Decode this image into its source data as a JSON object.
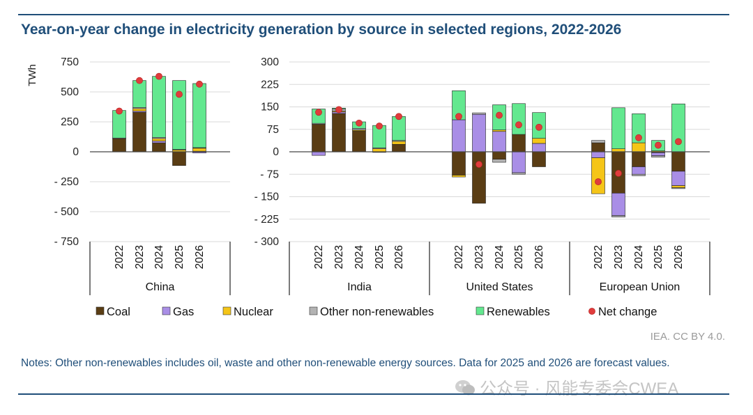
{
  "title": "Year-on-year change in electricity generation by source in selected regions, 2022-2026",
  "credit": "IEA. CC BY 4.0.",
  "notes": "Notes: Other non-renewables includes oil, waste and other non-renewable energy sources. Data for 2025 and 2026 are forecast values.",
  "watermark": "公众号 · 风能专委会CWEA",
  "colors": {
    "coal": "#5a3d14",
    "gas": "#a98ee6",
    "nuclear": "#f5c518",
    "other": "#b3b3b3",
    "renewables": "#63e88f",
    "net": "#e03c3c",
    "title": "#1f4e79"
  },
  "chart_data": [
    {
      "type": "bar",
      "stacked": true,
      "ylabel": "TWh",
      "ylim": [
        -750,
        750
      ],
      "yticks": [
        "750",
        "500",
        "250",
        "0",
        "- 250",
        "- 500",
        "- 750"
      ],
      "yticks_values": [
        750,
        500,
        250,
        0,
        -250,
        -500,
        -750
      ],
      "groups": [
        {
          "name": "China",
          "categories": [
            "2022",
            "2023",
            "2024",
            "2025",
            "2026"
          ],
          "series": {
            "coal": [
              110,
              330,
              75,
              -115,
              5
            ],
            "gas": [
              0,
              10,
              15,
              0,
              -10
            ],
            "nuclear": [
              0,
              20,
              20,
              15,
              25
            ],
            "other": [
              5,
              10,
              10,
              5,
              5
            ],
            "renewables": [
              230,
              225,
              510,
              575,
              535
            ]
          },
          "net": [
            340,
            595,
            630,
            480,
            565
          ]
        }
      ]
    },
    {
      "type": "bar",
      "stacked": true,
      "ylabel": "",
      "ylim": [
        -300,
        300
      ],
      "yticks": [
        "300",
        "225",
        "150",
        "75",
        "0",
        "- 75",
        "- 150",
        "- 225",
        "- 300"
      ],
      "yticks_values": [
        300,
        225,
        150,
        75,
        0,
        -75,
        -150,
        -225,
        -300
      ],
      "groups": [
        {
          "name": "India",
          "categories": [
            "2022",
            "2023",
            "2024",
            "2025",
            "2026"
          ],
          "series": {
            "coal": [
              92,
              128,
              70,
              -2,
              25
            ],
            "gas": [
              -12,
              5,
              0,
              0,
              0
            ],
            "nuclear": [
              0,
              3,
              3,
              10,
              10
            ],
            "other": [
              3,
              7,
              5,
              3,
              3
            ],
            "renewables": [
              48,
              3,
              22,
              75,
              80
            ]
          },
          "net": [
            132,
            141,
            96,
            86,
            118
          ]
        },
        {
          "name": "United States",
          "categories": [
            "2022",
            "2023",
            "2024",
            "2025",
            "2026"
          ],
          "series": {
            "coal": [
              -78,
              -172,
              -25,
              58,
              -50
            ],
            "gas": [
              107,
              125,
              68,
              -70,
              28
            ],
            "nuclear": [
              -6,
              0,
              5,
              0,
              17
            ],
            "other": [
              0,
              5,
              -10,
              -5,
              0
            ],
            "renewables": [
              97,
              0,
              84,
              103,
              86
            ]
          },
          "net": [
            118,
            -42,
            122,
            90,
            82
          ]
        },
        {
          "name": "European Union",
          "categories": [
            "2022",
            "2023",
            "2024",
            "2025",
            "2026"
          ],
          "series": {
            "coal": [
              30,
              -138,
              -50,
              -3,
              -65
            ],
            "gas": [
              -20,
              -75,
              -25,
              -10,
              -48
            ],
            "nuclear": [
              -120,
              10,
              30,
              3,
              -7
            ],
            "other": [
              8,
              -5,
              -5,
              -5,
              -3
            ],
            "renewables": [
              0,
              137,
              97,
              35,
              160
            ]
          },
          "net": [
            -100,
            -72,
            47,
            22,
            34
          ]
        }
      ]
    }
  ],
  "legend": [
    {
      "key": "coal",
      "label": "Coal"
    },
    {
      "key": "gas",
      "label": "Gas"
    },
    {
      "key": "nuclear",
      "label": "Nuclear"
    },
    {
      "key": "other",
      "label": "Other non-renewables"
    },
    {
      "key": "renewables",
      "label": "Renewables"
    },
    {
      "key": "net",
      "label": "Net change"
    }
  ]
}
